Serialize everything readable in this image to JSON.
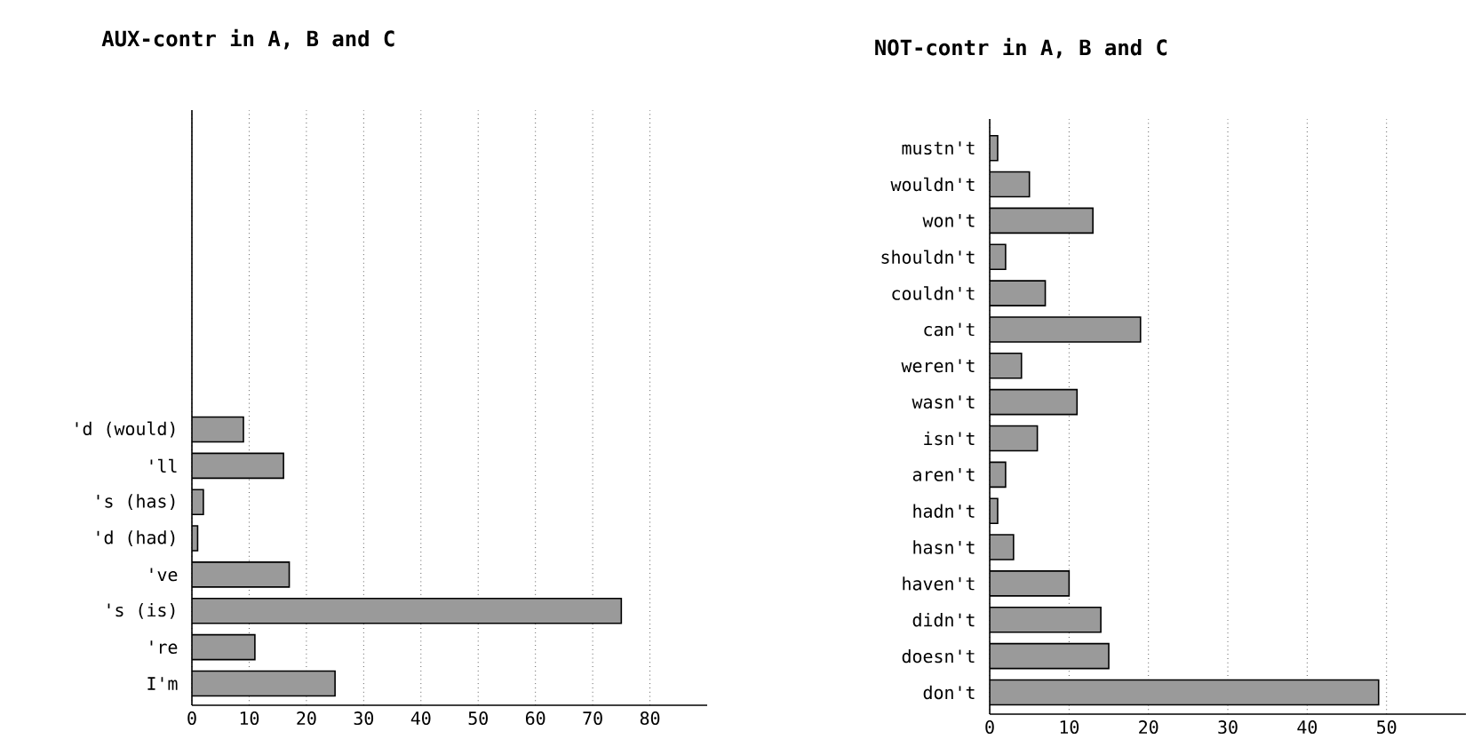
{
  "chart_data": [
    {
      "type": "bar",
      "orientation": "horizontal",
      "title": "AUX-contr in A, B and C",
      "categories": [
        "'d (would)",
        "'ll",
        "'s (has)",
        "'d (had)",
        "'ve",
        "'s (is)",
        "'re",
        "I'm"
      ],
      "values": [
        9,
        16,
        2,
        1,
        17,
        75,
        11,
        25
      ],
      "color": "#9a9a9a",
      "xlim": [
        0,
        90
      ],
      "xticks": [
        0,
        10,
        20,
        30,
        40,
        50,
        60,
        70,
        80
      ],
      "grid": "x"
    },
    {
      "type": "bar",
      "orientation": "horizontal",
      "title": "NOT-contr in A, B and C",
      "categories": [
        "mustn't",
        "wouldn't",
        "won't",
        "shouldn't",
        "couldn't",
        "can't",
        "weren't",
        "wasn't",
        "isn't",
        "aren't",
        "hadn't",
        "hasn't",
        "haven't",
        "didn't",
        "doesn't",
        "don't"
      ],
      "values": [
        1,
        5,
        13,
        2,
        7,
        19,
        4,
        11,
        6,
        2,
        1,
        3,
        10,
        14,
        15,
        49
      ],
      "color": "#9a9a9a",
      "xlim": [
        0,
        60
      ],
      "xticks": [
        0,
        10,
        20,
        30,
        40,
        50
      ],
      "grid": "x"
    }
  ]
}
